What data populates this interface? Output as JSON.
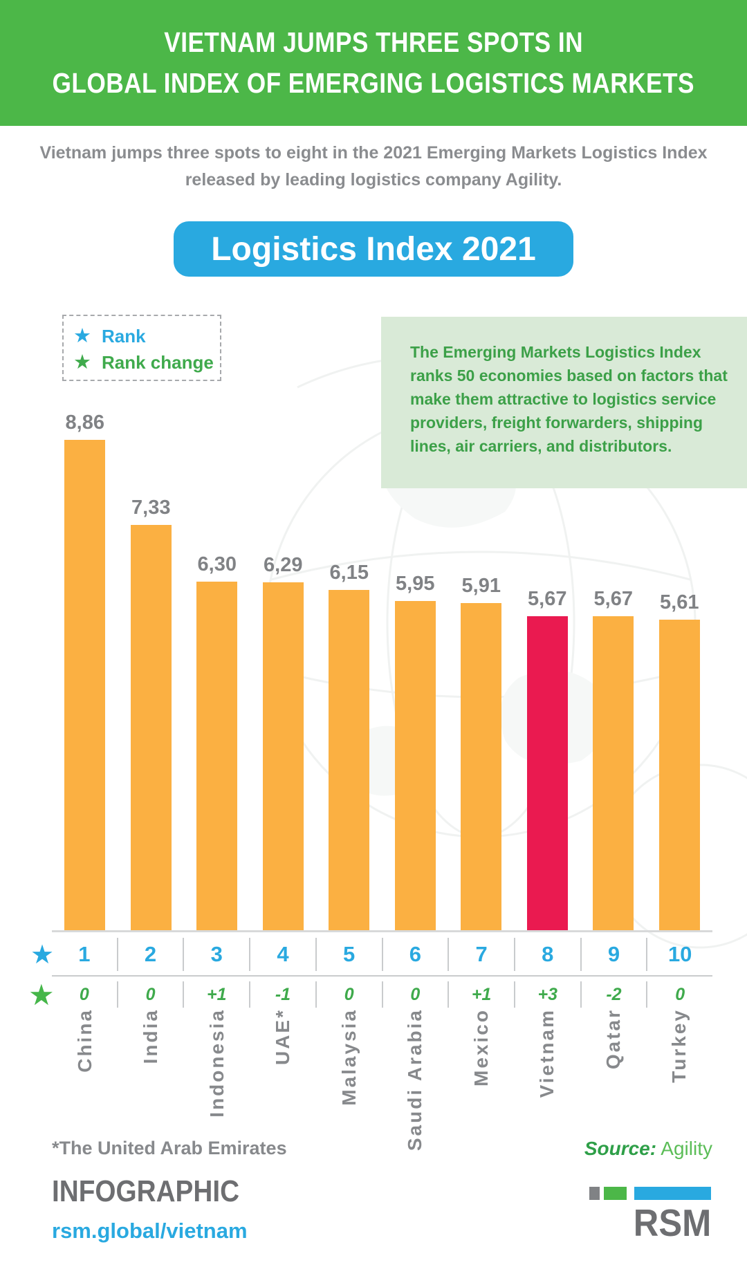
{
  "header": {
    "title_line1": "VIETNAM JUMPS THREE SPOTS IN",
    "title_line2": "GLOBAL INDEX OF EMERGING LOGISTICS MARKETS"
  },
  "intro": {
    "line1": "Vietnam jumps three spots to eight in the 2021 Emerging Markets Logistics Index",
    "line2": "released by leading logistics company Agility."
  },
  "badge": {
    "label": "Logistics Index 2021"
  },
  "legend": {
    "star_glyph": "★",
    "rank_label": "Rank",
    "rank_change_label": "Rank change",
    "rank_color": "#29A9E0",
    "rank_change_color": "#3FAA4C"
  },
  "infobox": {
    "text": "The Emerging Markets Logistics Index ranks 50 economies based on factors that make them attractive to logistics service providers, freight forwarders, shipping lines, air carriers, and distributors."
  },
  "chart_data": {
    "type": "bar",
    "title": "Logistics Index 2021",
    "categories": [
      "China",
      "India",
      "Indonesia",
      "UAE*",
      "Malaysia",
      "Saudi Arabia",
      "Mexico",
      "Vietnam",
      "Qatar",
      "Turkey"
    ],
    "values": [
      8.86,
      7.33,
      6.3,
      6.29,
      6.15,
      5.95,
      5.91,
      5.67,
      5.67,
      5.61
    ],
    "value_labels": [
      "8,86",
      "7,33",
      "6,30",
      "6,29",
      "6,15",
      "5,95",
      "5,91",
      "5,67",
      "5,67",
      "5,61"
    ],
    "ranks": [
      "1",
      "2",
      "3",
      "4",
      "5",
      "6",
      "7",
      "8",
      "9",
      "10"
    ],
    "rank_changes": [
      "0",
      "0",
      "+1",
      "-1",
      "0",
      "0",
      "+1",
      "+3",
      "-2",
      "0"
    ],
    "highlight_index": 7,
    "bar_color": "#FBB042",
    "highlight_color": "#EA1A50",
    "ylim": [
      0,
      9
    ],
    "grid": false,
    "legend_position": "top-left"
  },
  "footer": {
    "footnote": "*The United Arab Emirates",
    "source_prefix": "Source:",
    "source_name": "Agility",
    "brand": "INFOGRAPHIC",
    "site": "rsm.global/vietnam",
    "logo_text": "RSM"
  }
}
